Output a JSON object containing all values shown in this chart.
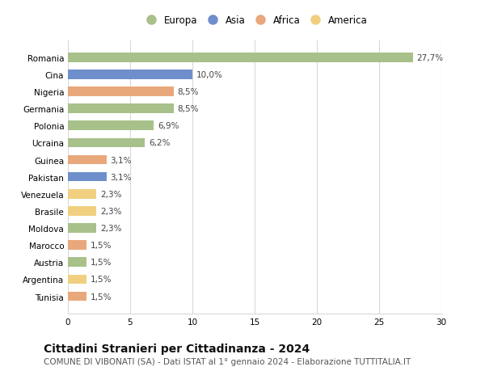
{
  "categories": [
    "Romania",
    "Cina",
    "Nigeria",
    "Germania",
    "Polonia",
    "Ucraina",
    "Guinea",
    "Pakistan",
    "Venezuela",
    "Brasile",
    "Moldova",
    "Marocco",
    "Austria",
    "Argentina",
    "Tunisia"
  ],
  "values": [
    27.7,
    10.0,
    8.5,
    8.5,
    6.9,
    6.2,
    3.1,
    3.1,
    2.3,
    2.3,
    2.3,
    1.5,
    1.5,
    1.5,
    1.5
  ],
  "labels": [
    "27,7%",
    "10,0%",
    "8,5%",
    "8,5%",
    "6,9%",
    "6,2%",
    "3,1%",
    "3,1%",
    "2,3%",
    "2,3%",
    "2,3%",
    "1,5%",
    "1,5%",
    "1,5%",
    "1,5%"
  ],
  "continents": [
    "Europa",
    "Asia",
    "Africa",
    "Europa",
    "Europa",
    "Europa",
    "Africa",
    "Asia",
    "America",
    "America",
    "Europa",
    "Africa",
    "Europa",
    "America",
    "Africa"
  ],
  "continent_colors": {
    "Europa": "#a8c08a",
    "Asia": "#6e8fcb",
    "Africa": "#e8a87c",
    "America": "#f0d080"
  },
  "legend_order": [
    "Europa",
    "Asia",
    "Africa",
    "America"
  ],
  "xlim": [
    0,
    30
  ],
  "xticks": [
    0,
    5,
    10,
    15,
    20,
    25,
    30
  ],
  "title": "Cittadini Stranieri per Cittadinanza - 2024",
  "subtitle": "COMUNE DI VIBONATI (SA) - Dati ISTAT al 1° gennaio 2024 - Elaborazione TUTTITALIA.IT",
  "background_color": "#ffffff",
  "grid_color": "#d8d8d8",
  "bar_height": 0.55,
  "title_fontsize": 10,
  "subtitle_fontsize": 7.5,
  "label_fontsize": 7.5,
  "tick_fontsize": 7.5,
  "legend_fontsize": 8.5
}
